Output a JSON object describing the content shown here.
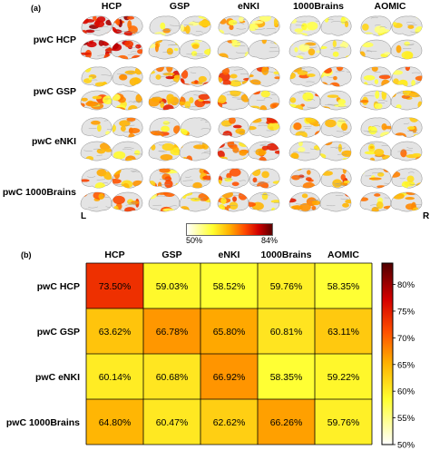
{
  "panel_a": {
    "label": "(a)",
    "columns": [
      "HCP",
      "GSP",
      "eNKI",
      "1000Brains",
      "AOMIC"
    ],
    "rows": [
      "pwC HCP",
      "pwC GSP",
      "pwC eNKI",
      "pwC 1000Brains"
    ],
    "left_marker": "L",
    "right_marker": "R",
    "colorbar": {
      "min_label": "50%",
      "max_label": "84%"
    },
    "intensity": [
      [
        0.85,
        0.2,
        0.25,
        0.2,
        0.2
      ],
      [
        0.35,
        0.55,
        0.45,
        0.35,
        0.35
      ],
      [
        0.3,
        0.35,
        0.5,
        0.3,
        0.3
      ],
      [
        0.4,
        0.35,
        0.4,
        0.5,
        0.3
      ]
    ]
  },
  "chart_data": {
    "type": "heatmap",
    "label": "(b)",
    "columns": [
      "HCP",
      "GSP",
      "eNKI",
      "1000Brains",
      "AOMIC"
    ],
    "rows": [
      "pwC HCP",
      "pwC GSP",
      "pwC eNKI",
      "pwC 1000Brains"
    ],
    "values": [
      [
        73.5,
        59.03,
        58.52,
        59.76,
        58.35
      ],
      [
        63.62,
        66.78,
        65.8,
        60.81,
        63.11
      ],
      [
        60.14,
        60.68,
        66.92,
        58.35,
        59.22
      ],
      [
        64.8,
        60.47,
        62.62,
        66.26,
        59.76
      ]
    ],
    "cell_labels": [
      [
        "73.50%",
        "59.03%",
        "58.52%",
        "59.76%",
        "58.35%"
      ],
      [
        "63.62%",
        "66.78%",
        "65.80%",
        "60.81%",
        "63.11%"
      ],
      [
        "60.14%",
        "60.68%",
        "66.92%",
        "58.35%",
        "59.22%"
      ],
      [
        "64.80%",
        "60.47%",
        "62.62%",
        "66.26%",
        "59.76%"
      ]
    ],
    "colorbar": {
      "min": 50,
      "max": 84,
      "ticks": [
        50,
        55,
        60,
        65,
        70,
        75,
        80
      ],
      "tick_labels": [
        "50%",
        "55%",
        "60%",
        "65%",
        "70%",
        "75%",
        "80%"
      ]
    },
    "colormap": "hot-reversed",
    "grid": true
  }
}
